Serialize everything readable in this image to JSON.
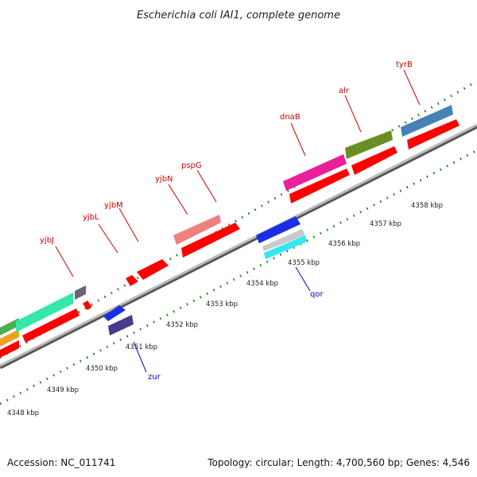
{
  "title": "Escherichia coli IAI1, complete genome",
  "footer": {
    "accession": "Accession: NC_011741",
    "summary": "Topology: circular; Length: 4,700,560 bp; Genes: 4,546"
  },
  "colors": {
    "backbone": "#888888",
    "ticks": "#1a7a1a",
    "cds": "#ff0000",
    "label_forward": "#cc0000",
    "label_reverse": "#0000cc"
  },
  "scale_labels": [
    "4348 kbp",
    "4349 kbp",
    "4350 kbp",
    "4351 kbp",
    "4352 kbp",
    "4353 kbp",
    "4354 kbp",
    "4355 kbp",
    "4356 kbp",
    "4357 kbp",
    "4358 kbp"
  ],
  "forward_labels": [
    "yjbJ",
    "yjbL",
    "yjbM",
    "yjbN",
    "pspG",
    "dnaB",
    "alr",
    "tyrB"
  ],
  "reverse_labels": [
    "zur",
    "qor"
  ]
}
